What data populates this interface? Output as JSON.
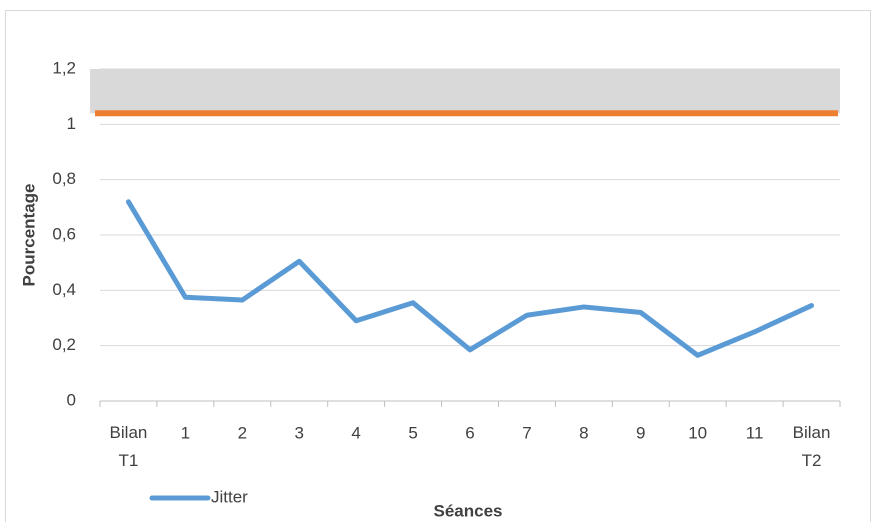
{
  "chart_data": {
    "type": "line",
    "x_label": "Séances",
    "y_label": "Pourcentage",
    "categories": [
      "Bilan T1",
      "1",
      "2",
      "3",
      "4",
      "5",
      "6",
      "7",
      "8",
      "9",
      "10",
      "11",
      "Bilan T2"
    ],
    "series": [
      {
        "name": "Jitter",
        "color": "#5b9bd5",
        "values": [
          0.72,
          0.375,
          0.365,
          0.505,
          0.29,
          0.355,
          0.185,
          0.31,
          0.34,
          0.32,
          0.165,
          0.25,
          0.345
        ]
      }
    ],
    "band": {
      "from": 1.04,
      "to": 1.2,
      "color": "#d9d9d9"
    },
    "reference_line": {
      "value": 1.04,
      "color": "#ed7d31"
    },
    "ylim": [
      0,
      1.2
    ],
    "yticks": [
      0,
      {
        "value": 0.2,
        "label": "0,2"
      },
      {
        "value": 0.4,
        "label": "0,4"
      },
      {
        "value": 0.6,
        "label": "0,6"
      },
      {
        "value": 0.8,
        "label": "0,8"
      },
      1,
      {
        "value": 1.2,
        "label": "1,2"
      }
    ],
    "grid": true,
    "legend": "bottom-left"
  }
}
